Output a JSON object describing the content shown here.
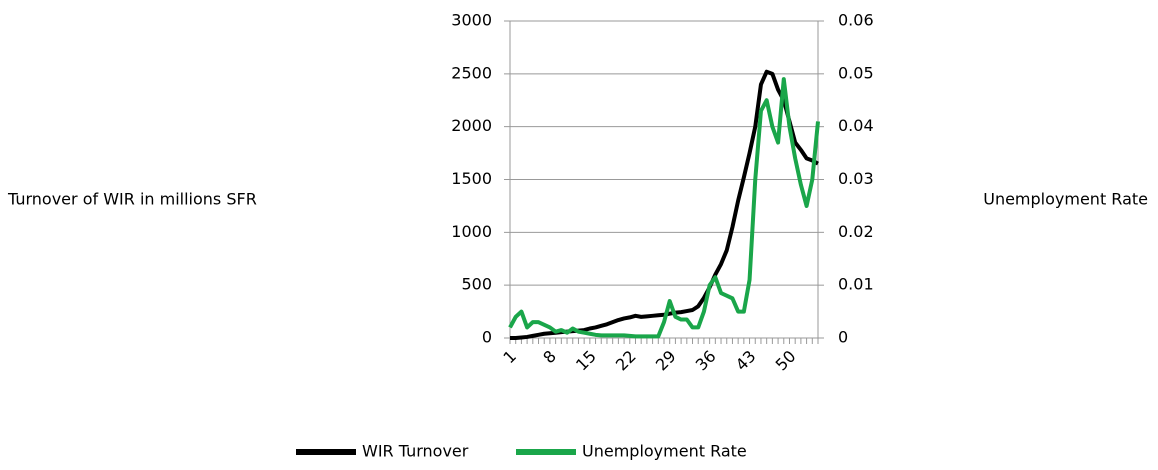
{
  "chart_data": {
    "type": "line",
    "categories": [
      1,
      null,
      null,
      null,
      null,
      null,
      null,
      8,
      null,
      null,
      null,
      null,
      null,
      null,
      15,
      null,
      null,
      null,
      null,
      null,
      null,
      22,
      null,
      null,
      null,
      null,
      null,
      null,
      29,
      null,
      null,
      null,
      null,
      null,
      null,
      36,
      null,
      null,
      null,
      null,
      null,
      null,
      43,
      null,
      null,
      null,
      null,
      null,
      null,
      50,
      null,
      null,
      null,
      null,
      null
    ],
    "ylabel": "Turnover of WIR in millions SFR",
    "y2label": "Unemployment Rate",
    "ylim": [
      0,
      3000
    ],
    "yticks": [
      0,
      500,
      1000,
      1500,
      2000,
      2500,
      3000
    ],
    "y2lim": [
      0,
      0.06
    ],
    "y2ticks": [
      0,
      0.01,
      0.02,
      0.03,
      0.04,
      0.05,
      0.06
    ],
    "grid": true,
    "legend": "bottom",
    "series": [
      {
        "name": "WIR Turnover",
        "color": "#000000",
        "values": [
          0,
          0,
          5,
          10,
          20,
          30,
          40,
          45,
          50,
          55,
          60,
          65,
          70,
          75,
          90,
          100,
          115,
          130,
          150,
          170,
          185,
          195,
          210,
          200,
          205,
          210,
          215,
          220,
          230,
          240,
          245,
          255,
          265,
          300,
          380,
          480,
          600,
          700,
          830,
          1050,
          1300,
          1520,
          1750,
          2000,
          2400,
          2520,
          2500,
          2350,
          2250,
          2050,
          1850,
          1780,
          1700,
          1680,
          1650
        ]
      },
      {
        "name": "Unemployment Rate",
        "color": "#1aa64a",
        "axis": "y2",
        "values": [
          0.002,
          0.004,
          0.005,
          0.002,
          0.003,
          0.003,
          0.0025,
          0.002,
          0.0012,
          0.0015,
          0.001,
          0.0018,
          0.0012,
          0.001,
          0.0008,
          0.0006,
          0.0005,
          0.0005,
          0.0005,
          0.0005,
          0.0005,
          0.0004,
          0.0003,
          0.0003,
          0.0003,
          0.0003,
          0.0003,
          0.003,
          0.007,
          0.004,
          0.0035,
          0.0035,
          0.002,
          0.002,
          0.005,
          0.01,
          0.0115,
          0.0085,
          0.008,
          0.0075,
          0.005,
          0.005,
          0.011,
          0.03,
          0.043,
          0.045,
          0.04,
          0.037,
          0.049,
          0.04,
          0.034,
          0.029,
          0.025,
          0.03,
          0.041
        ]
      }
    ]
  }
}
